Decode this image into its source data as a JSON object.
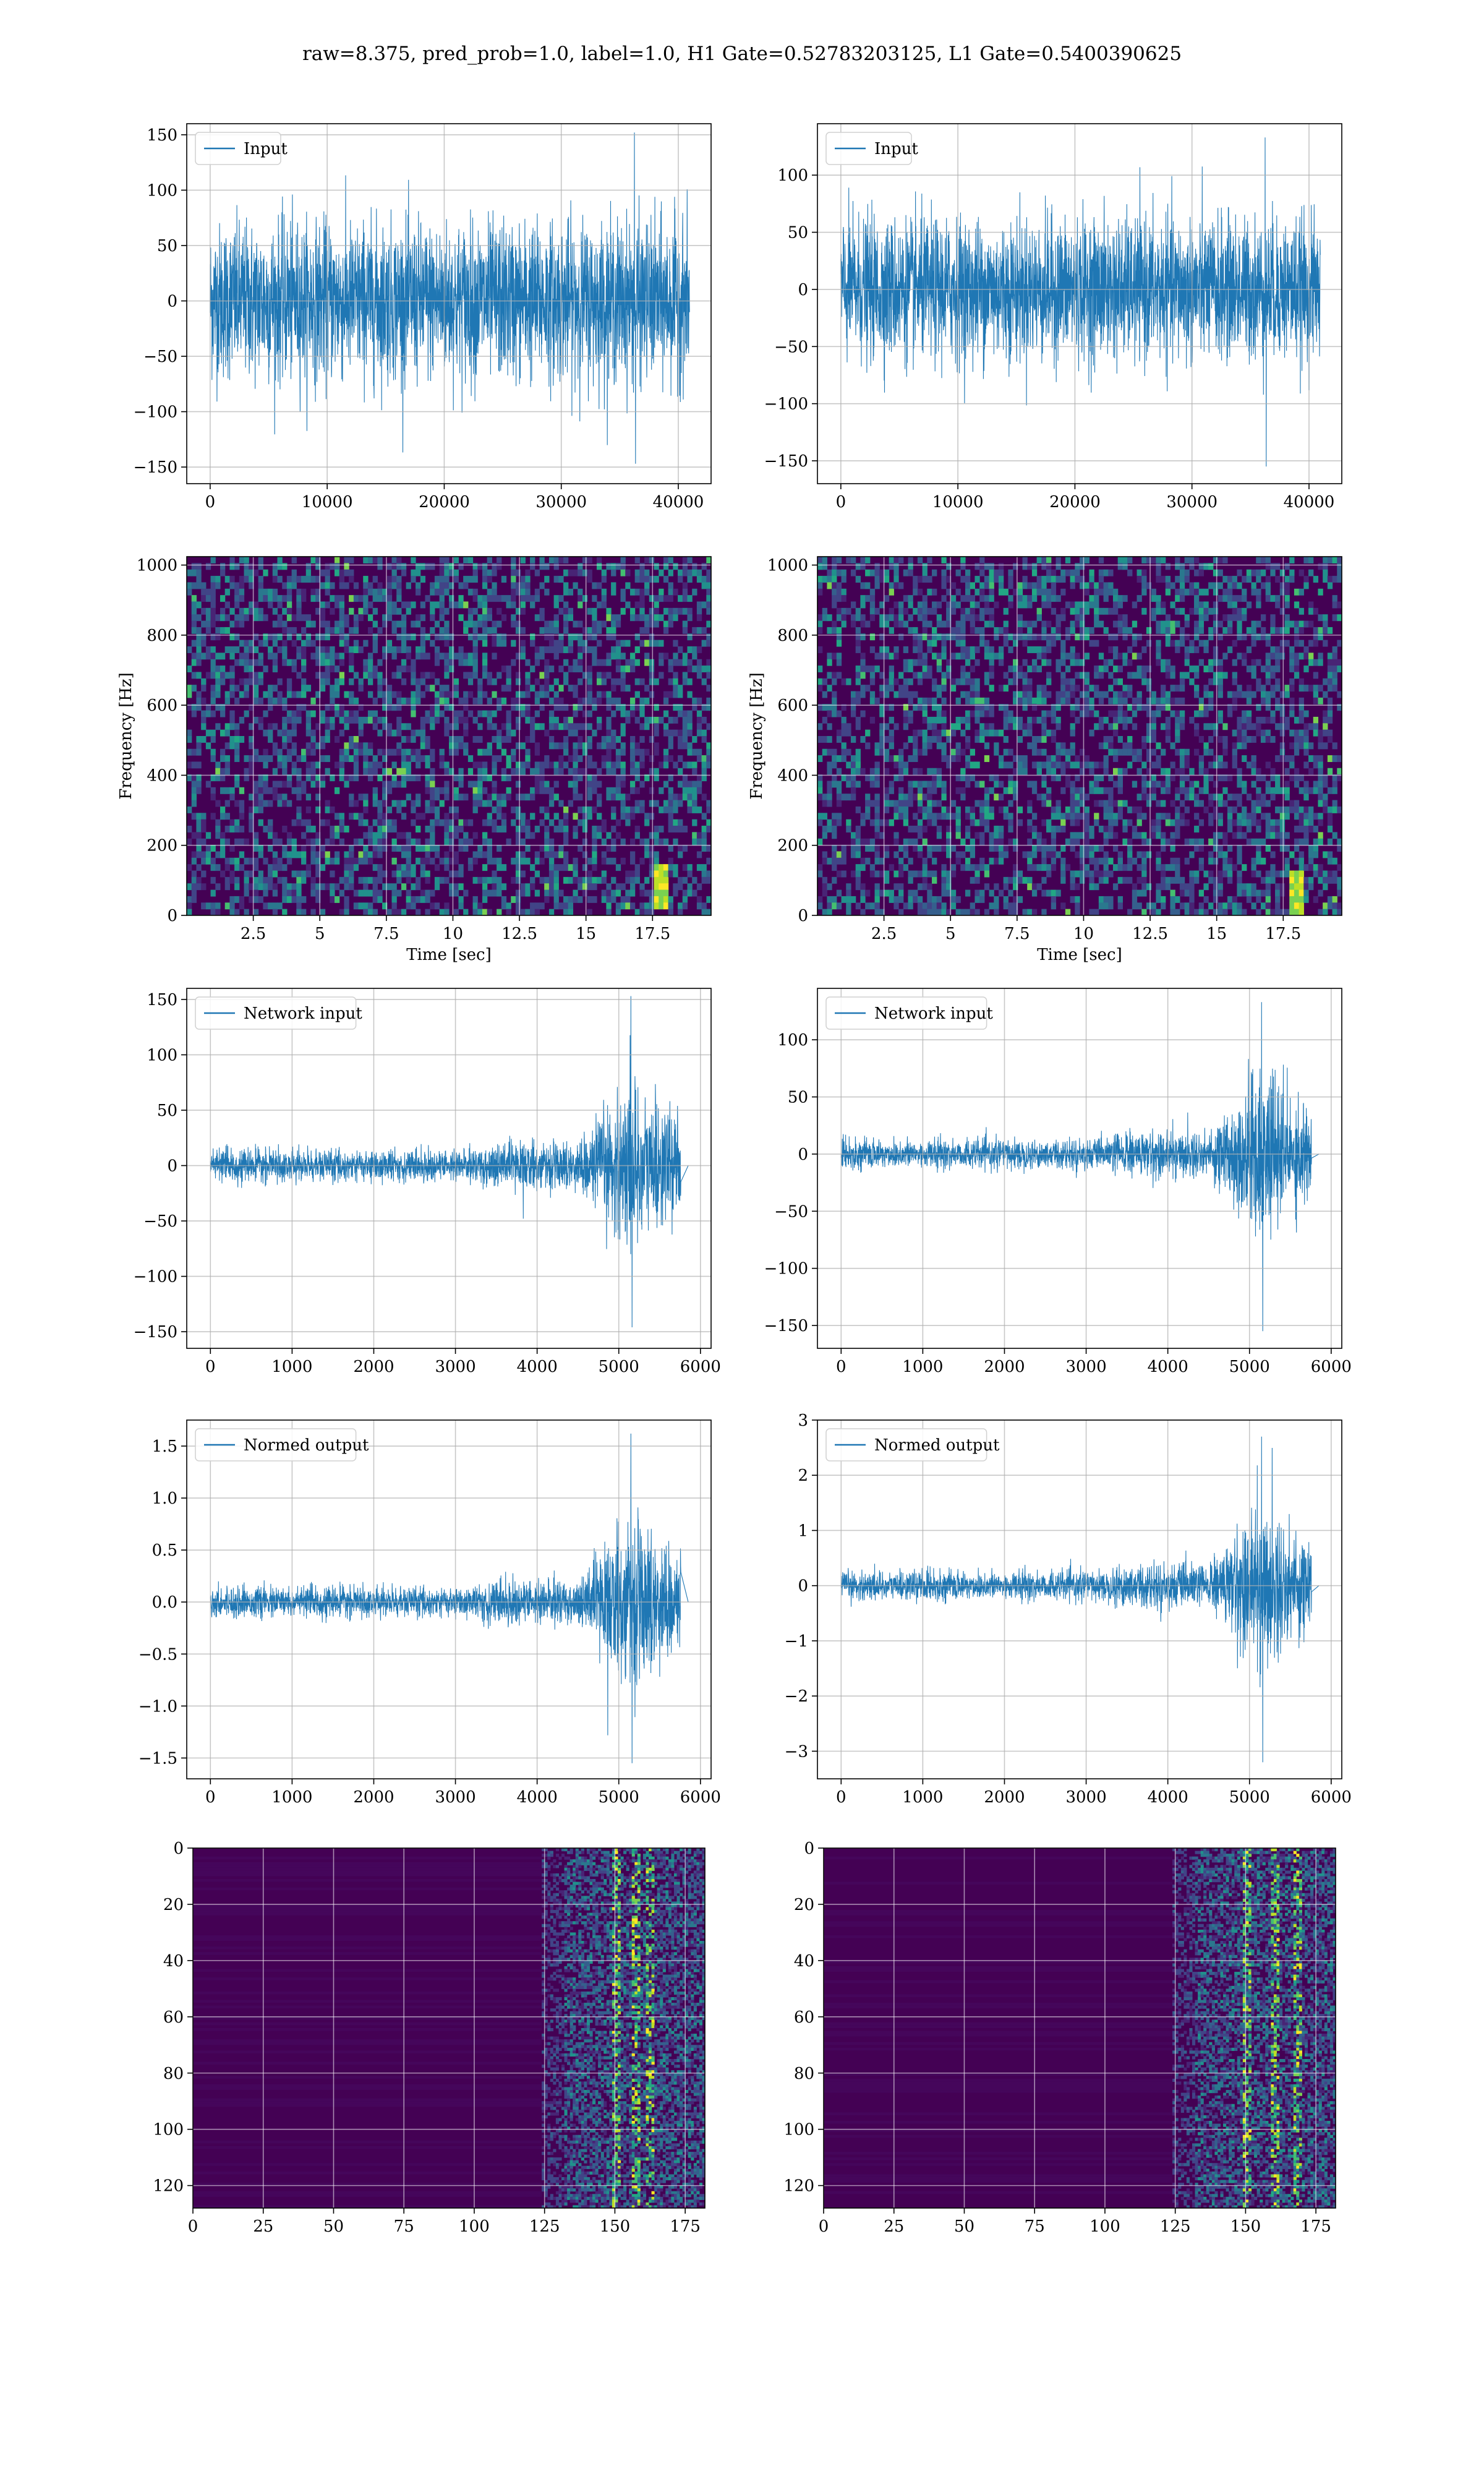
{
  "figure": {
    "suptitle": "raw=8.375, pred_prob=1.0, label=1.0, H1 Gate=0.52783203125, L1 Gate=0.5400390625"
  },
  "colors": {
    "line": "#1f77b4",
    "grid": "#b0b0b0",
    "viridis_dark": "#440154",
    "viridis_mid": "#21918c",
    "viridis_bright": "#fde725"
  },
  "chart_data": [
    {
      "id": "h1-input",
      "type": "line",
      "series": [
        {
          "name": "Input"
        }
      ],
      "xlim": [
        -2000,
        42800
      ],
      "ylim": [
        -165,
        160
      ],
      "xticks": [
        0,
        10000,
        20000,
        30000,
        40000
      ],
      "yticks": [
        -150,
        -100,
        -50,
        0,
        50,
        100,
        150
      ],
      "xlabel": "",
      "ylabel": "",
      "grid": true,
      "legend": "upper left",
      "signal": {
        "kind": "noise",
        "x_start": 0,
        "x_end": 40960,
        "core_amplitude": 90,
        "max_positive": 152,
        "max_negative": -147
      }
    },
    {
      "id": "l1-input",
      "type": "line",
      "series": [
        {
          "name": "Input"
        }
      ],
      "xlim": [
        -2000,
        42800
      ],
      "ylim": [
        -170,
        145
      ],
      "xticks": [
        0,
        10000,
        20000,
        30000,
        40000
      ],
      "yticks": [
        -150,
        -100,
        -50,
        0,
        50,
        100
      ],
      "xlabel": "",
      "ylabel": "",
      "grid": true,
      "legend": "upper left",
      "signal": {
        "kind": "noise",
        "x_start": 0,
        "x_end": 40960,
        "core_amplitude": 78,
        "max_positive": 133,
        "max_negative": -155
      }
    },
    {
      "id": "h1-spectrogram",
      "type": "heatmap",
      "xlim": [
        0,
        19.7
      ],
      "ylim": [
        0,
        1024
      ],
      "xticks": [
        2.5,
        5.0,
        7.5,
        10.0,
        12.5,
        15.0,
        17.5
      ],
      "yticks": [
        0,
        200,
        400,
        600,
        800,
        1000
      ],
      "xlabel": "Time [sec]",
      "ylabel": "Frequency [Hz]",
      "grid": true,
      "colormap": "viridis",
      "highlight": {
        "time": 17.8,
        "frequency": 80
      }
    },
    {
      "id": "l1-spectrogram",
      "type": "heatmap",
      "xlim": [
        0,
        19.7
      ],
      "ylim": [
        0,
        1024
      ],
      "xticks": [
        2.5,
        5.0,
        7.5,
        10.0,
        12.5,
        15.0,
        17.5
      ],
      "yticks": [
        0,
        200,
        400,
        600,
        800,
        1000
      ],
      "xlabel": "Time [sec]",
      "ylabel": "Frequency [Hz]",
      "grid": true,
      "colormap": "viridis",
      "highlight": {
        "time": 18.0,
        "frequency": 60
      }
    },
    {
      "id": "h1-network-input",
      "type": "line",
      "series": [
        {
          "name": "Network input"
        }
      ],
      "xlim": [
        -290,
        6130
      ],
      "ylim": [
        -165,
        160
      ],
      "xticks": [
        0,
        1000,
        2000,
        3000,
        4000,
        5000,
        6000
      ],
      "yticks": [
        -150,
        -100,
        -50,
        0,
        50,
        100,
        150
      ],
      "xlabel": "",
      "ylabel": "",
      "grid": true,
      "legend": "upper left",
      "signal": {
        "kind": "chirp",
        "x_start": 0,
        "x_end": 5760,
        "x_flat_end": 5850,
        "base_amplitude": 18,
        "step_x": 3300,
        "step_amplitude": 26,
        "burst_start": 4500,
        "burst_peak_x": 5150,
        "burst_end": 5730,
        "max_positive": 153,
        "max_negative": -146
      }
    },
    {
      "id": "l1-network-input",
      "type": "line",
      "series": [
        {
          "name": "Network input"
        }
      ],
      "xlim": [
        -290,
        6130
      ],
      "ylim": [
        -170,
        145
      ],
      "xticks": [
        0,
        1000,
        2000,
        3000,
        4000,
        5000,
        6000
      ],
      "yticks": [
        -150,
        -100,
        -50,
        0,
        50,
        100
      ],
      "xlabel": "",
      "ylabel": "",
      "grid": true,
      "legend": "upper left",
      "signal": {
        "kind": "chirp",
        "x_start": 0,
        "x_end": 5760,
        "x_flat_end": 5850,
        "base_amplitude": 16,
        "step_x": 3320,
        "step_amplitude": 25,
        "burst_start": 4500,
        "burst_peak_x": 5150,
        "burst_end": 5730,
        "max_positive": 133,
        "max_negative": -155
      }
    },
    {
      "id": "h1-normed-output",
      "type": "line",
      "series": [
        {
          "name": "Normed output"
        }
      ],
      "xlim": [
        -290,
        6130
      ],
      "ylim": [
        -1.7,
        1.75
      ],
      "xticks": [
        0,
        1000,
        2000,
        3000,
        4000,
        5000,
        6000
      ],
      "yticks": [
        -1.5,
        -1.0,
        -0.5,
        0.0,
        0.5,
        1.0,
        1.5
      ],
      "ytick_decimals": 1,
      "xlabel": "",
      "ylabel": "",
      "grid": true,
      "legend": "upper left",
      "signal": {
        "kind": "chirp",
        "x_start": 0,
        "x_end": 5760,
        "x_flat_end": 5850,
        "base_amplitude": 0.18,
        "step_x": 3300,
        "step_amplitude": 0.27,
        "burst_start": 4500,
        "burst_peak_x": 5150,
        "burst_end": 5730,
        "max_positive": 1.62,
        "max_negative": -1.55
      }
    },
    {
      "id": "l1-normed-output",
      "type": "line",
      "series": [
        {
          "name": "Normed output"
        }
      ],
      "xlim": [
        -290,
        6130
      ],
      "ylim": [
        -3.5,
        3.0
      ],
      "xticks": [
        0,
        1000,
        2000,
        3000,
        4000,
        5000,
        6000
      ],
      "yticks": [
        -3,
        -2,
        -1,
        0,
        1,
        2,
        3
      ],
      "xlabel": "",
      "ylabel": "",
      "grid": true,
      "legend": "upper left",
      "signal": {
        "kind": "chirp",
        "x_start": 0,
        "x_end": 5760,
        "x_flat_end": 5850,
        "base_amplitude": 0.33,
        "step_x": 3320,
        "step_amplitude": 0.5,
        "burst_start": 4500,
        "burst_peak_x": 5150,
        "burst_end": 5730,
        "max_positive": 2.7,
        "max_negative": -3.2
      }
    },
    {
      "id": "h1-activation-map",
      "type": "heatmap",
      "xlim": [
        0,
        182
      ],
      "ylim": [
        128,
        0
      ],
      "xticks": [
        0,
        25,
        50,
        75,
        100,
        125,
        150,
        175
      ],
      "yticks": [
        0,
        20,
        40,
        60,
        80,
        100,
        120
      ],
      "xlabel": "",
      "ylabel": "",
      "grid": true,
      "colormap": "viridis",
      "active_from_column": 124,
      "hot_columns": [
        150,
        157,
        162
      ]
    },
    {
      "id": "l1-activation-map",
      "type": "heatmap",
      "xlim": [
        0,
        182
      ],
      "ylim": [
        128,
        0
      ],
      "xticks": [
        0,
        25,
        50,
        75,
        100,
        125,
        150,
        175
      ],
      "yticks": [
        0,
        20,
        40,
        60,
        80,
        100,
        120
      ],
      "xlabel": "",
      "ylabel": "",
      "grid": true,
      "colormap": "viridis",
      "active_from_column": 124,
      "hot_columns": [
        150,
        160,
        168
      ]
    }
  ]
}
